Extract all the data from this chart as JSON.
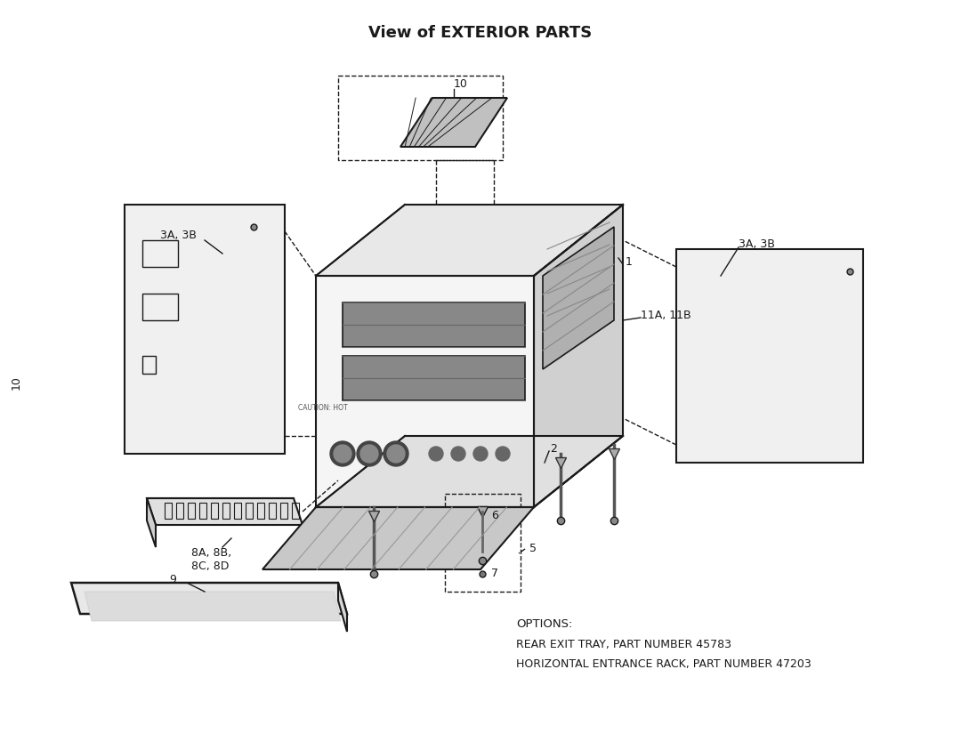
{
  "title": "View of EXTERIOR PARTS",
  "title_fontsize": 13,
  "title_bold": true,
  "bg_color": "#ffffff",
  "line_color": "#1a1a1a",
  "text_color": "#1a1a1a",
  "options_text": "OPTIONS:",
  "option1": "REAR EXIT TRAY, PART NUMBER 45783",
  "option2": "HORIZONTAL ENTRANCE RACK, PART NUMBER 47203",
  "label_10_top": "10",
  "label_10_left": "10",
  "label_1": "1",
  "label_2": "2",
  "label_3a3b_left": "3A, 3B",
  "label_3a3b_right": "3A, 3B",
  "label_5": "5",
  "label_6": "6",
  "label_7": "7",
  "label_9": "9",
  "label_11a11b": "11A, 11B",
  "label_8abcd": "8A, 8B,\n8C, 8D"
}
